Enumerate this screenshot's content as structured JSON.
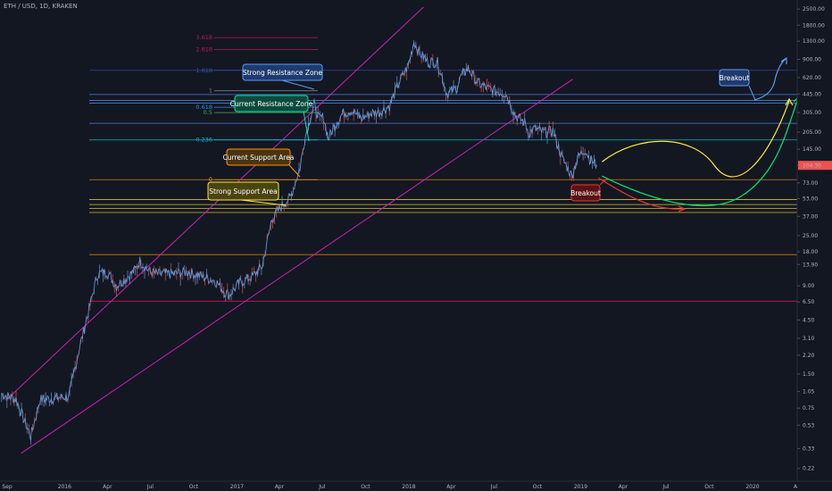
{
  "header": {
    "symbol_label": "ETH / USD, 1D, KRAKEN"
  },
  "chart_data": {
    "type": "line",
    "title": "ETH / USD, 1D, KRAKEN",
    "yscale": "log",
    "ylim": [
      0.2,
      2600
    ],
    "y_ticks": [
      0.22,
      0.33,
      0.53,
      0.75,
      1.05,
      1.5,
      2.2,
      3.1,
      4.5,
      6.5,
      9.0,
      13.9,
      18.0,
      25.0,
      37.0,
      53.0,
      73.0,
      105.0,
      145.0,
      205.0,
      305.0,
      445.0,
      620.0,
      900.0,
      1300.0,
      1800.0,
      2500.0
    ],
    "y_tick_labels": [
      "0.22",
      "0.33",
      "0.53",
      "0.75",
      "1.05",
      "1.50",
      "2.20",
      "3.10",
      "4.50",
      "6.50",
      "9.00",
      "13.90",
      "18.00",
      "25.00",
      "37.00",
      "53.00",
      "73.00",
      "105.00",
      "145.00",
      "205.00",
      "305.00",
      "445.00",
      "620.00",
      "900.00",
      "1300.00",
      "1800.00",
      "2500.00"
    ],
    "x_range": [
      "2015-09-01",
      "2020-04-01"
    ],
    "x_ticks": [
      {
        "date": "2015-09-01",
        "label": "Sep"
      },
      {
        "date": "2016-01-01",
        "label": "2016"
      },
      {
        "date": "2016-04-01",
        "label": "Apr"
      },
      {
        "date": "2016-07-01",
        "label": "Jul"
      },
      {
        "date": "2016-10-01",
        "label": "Oct"
      },
      {
        "date": "2017-01-01",
        "label": "2017"
      },
      {
        "date": "2017-04-01",
        "label": "Apr"
      },
      {
        "date": "2017-07-01",
        "label": "Jul"
      },
      {
        "date": "2017-10-01",
        "label": "Oct"
      },
      {
        "date": "2018-01-01",
        "label": "2018"
      },
      {
        "date": "2018-04-01",
        "label": "Apr"
      },
      {
        "date": "2018-07-01",
        "label": "Jul"
      },
      {
        "date": "2018-10-01",
        "label": "Oct"
      },
      {
        "date": "2019-01-01",
        "label": "2019"
      },
      {
        "date": "2019-04-01",
        "label": "Apr"
      },
      {
        "date": "2019-07-01",
        "label": "Jul"
      },
      {
        "date": "2019-10-01",
        "label": "Oct"
      },
      {
        "date": "2020-01-01",
        "label": "2020"
      },
      {
        "date": "2020-04-01",
        "label": "A"
      }
    ],
    "series": [
      {
        "color": "#6fa0dc",
        "points": [
          [
            "2015-08-20",
            1.0
          ],
          [
            "2015-09-20",
            0.9
          ],
          [
            "2015-10-21",
            0.42
          ],
          [
            "2015-11-10",
            0.9
          ],
          [
            "2015-11-20",
            0.9
          ],
          [
            "2016-01-10",
            0.95
          ],
          [
            "2016-01-31",
            2.4
          ],
          [
            "2016-02-20",
            5.2
          ],
          [
            "2016-03-11",
            11.5
          ],
          [
            "2016-03-31",
            12.0
          ],
          [
            "2016-04-20",
            9.0
          ],
          [
            "2016-05-10",
            10.5
          ],
          [
            "2016-05-30",
            12.5
          ],
          [
            "2016-06-09",
            15.0
          ],
          [
            "2016-06-19",
            13.5
          ],
          [
            "2016-06-29",
            12.0
          ],
          [
            "2016-07-19",
            11.5
          ],
          [
            "2016-08-18",
            11.5
          ],
          [
            "2016-09-17",
            12.0
          ],
          [
            "2016-10-17",
            11.0
          ],
          [
            "2016-11-16",
            10.0
          ],
          [
            "2016-12-06",
            8.0
          ],
          [
            "2016-12-16",
            7.5
          ],
          [
            "2017-01-05",
            9.5
          ],
          [
            "2017-02-04",
            11.0
          ],
          [
            "2017-02-24",
            13.5
          ],
          [
            "2017-03-16",
            35.0
          ],
          [
            "2017-04-05",
            45.0
          ],
          [
            "2017-04-25",
            55.0
          ],
          [
            "2017-05-15",
            100.0
          ],
          [
            "2017-05-25",
            180.0
          ],
          [
            "2017-06-04",
            260.0
          ],
          [
            "2017-06-14",
            360.0
          ],
          [
            "2017-06-24",
            270.0
          ],
          [
            "2017-07-04",
            280.0
          ],
          [
            "2017-07-14",
            180.0
          ],
          [
            "2017-07-24",
            220.0
          ],
          [
            "2017-08-13",
            300.0
          ],
          [
            "2017-09-02",
            320.0
          ],
          [
            "2017-09-22",
            270.0
          ],
          [
            "2017-10-12",
            300.0
          ],
          [
            "2017-11-01",
            310.0
          ],
          [
            "2017-11-21",
            350.0
          ],
          [
            "2017-12-11",
            560.0
          ],
          [
            "2017-12-31",
            800.0
          ],
          [
            "2018-01-12",
            1300.0
          ],
          [
            "2018-01-22",
            1050.0
          ],
          [
            "2018-02-11",
            850.0
          ],
          [
            "2018-02-21",
            850.0
          ],
          [
            "2018-03-03",
            850.0
          ],
          [
            "2018-03-23",
            450.0
          ],
          [
            "2018-04-12",
            500.0
          ],
          [
            "2018-04-22",
            640.0
          ],
          [
            "2018-05-07",
            750.0
          ],
          [
            "2018-05-27",
            560.0
          ],
          [
            "2018-06-16",
            500.0
          ],
          [
            "2018-07-06",
            470.0
          ],
          [
            "2018-07-26",
            450.0
          ],
          [
            "2018-08-15",
            290.0
          ],
          [
            "2018-09-04",
            250.0
          ],
          [
            "2018-09-14",
            200.0
          ],
          [
            "2018-09-24",
            220.0
          ],
          [
            "2018-10-14",
            205.0
          ],
          [
            "2018-11-03",
            210.0
          ],
          [
            "2018-11-23",
            120.0
          ],
          [
            "2018-12-13",
            85.0
          ],
          [
            "2018-12-25",
            120.0
          ],
          [
            "2019-01-10",
            145.0
          ],
          [
            "2019-01-20",
            120.0
          ],
          [
            "2019-02-04",
            104.3
          ]
        ]
      }
    ],
    "last_price": 104.3,
    "last_price_label": "104.30",
    "channel": {
      "color": "#c724b1",
      "upper": [
        [
          "2015-09-01",
          0.9
        ],
        [
          "2018-02-01",
          2600.0
        ]
      ],
      "lower": [
        [
          "2015-10-01",
          0.3
        ],
        [
          "2018-12-15",
          600.0
        ]
      ]
    },
    "fib_levels": [
      {
        "label": "3.618",
        "value": 1400.0,
        "color": "#c2185b"
      },
      {
        "label": "2.618",
        "value": 1100.0,
        "color": "#c2185b"
      },
      {
        "label": "1.618",
        "value": 720.0,
        "color": "#3f51b5"
      },
      {
        "label": "1",
        "value": 475.0,
        "color": "#787b86"
      },
      {
        "label": "0.618",
        "value": 340.0,
        "color": "#2196f3"
      },
      {
        "label": "0.5",
        "value": 305.0,
        "color": "#4caf50"
      },
      {
        "label": "0.236",
        "value": 175.0,
        "color": "#00bcd4"
      },
      {
        "label": "0",
        "value": 78.0,
        "color": "#ff9800"
      }
    ],
    "horizontal_lines": [
      {
        "value": 720.0,
        "color": "#3f51b5"
      },
      {
        "value": 440.0,
        "color": "#5b9cf6"
      },
      {
        "value": 390.0,
        "color": "#5b9cf6"
      },
      {
        "value": 370.0,
        "color": "#5b9cf6"
      },
      {
        "value": 245.0,
        "color": "#5b9cf6"
      },
      {
        "value": 175.0,
        "color": "#00bcd4"
      },
      {
        "value": 78.0,
        "color": "#ff9800"
      },
      {
        "value": 52.0,
        "color": "#ffeb3b"
      },
      {
        "value": 47.0,
        "color": "#ffeb3b"
      },
      {
        "value": 43.5,
        "color": "#ffeb3b"
      },
      {
        "value": 40.0,
        "color": "#ffeb3b"
      },
      {
        "value": 17.0,
        "color": "#ff9800"
      },
      {
        "value": 6.6,
        "color": "#e91e63"
      }
    ],
    "annotations": [
      {
        "text": "Strong Resistance Zone",
        "border": "#5b9cf6",
        "fill": "#1e3a6e",
        "text_color": "#ffffff"
      },
      {
        "text": "Current Resistance Zone",
        "border": "#00e6a8",
        "fill": "#0b4a3c",
        "text_color": "#ffffff"
      },
      {
        "text": "Current Support Area",
        "border": "#ff9800",
        "fill": "#4a3410",
        "text_color": "#ffffff"
      },
      {
        "text": "Strong Support Area",
        "border": "#ffeb3b",
        "fill": "#4a4510",
        "text_color": "#ffffff"
      },
      {
        "text": "Breakout",
        "border": "#5b9cf6",
        "fill": "#1e3a6e",
        "text_color": "#ffffff"
      },
      {
        "text": "Breakout",
        "border": "#e53935",
        "fill": "#5a1212",
        "text_color": "#ffffff"
      }
    ],
    "projection_paths": [
      {
        "color": "#ffeb3b"
      },
      {
        "color": "#00e676"
      },
      {
        "color": "#e53935"
      },
      {
        "color": "#5b9cf6"
      }
    ],
    "grid": false
  }
}
